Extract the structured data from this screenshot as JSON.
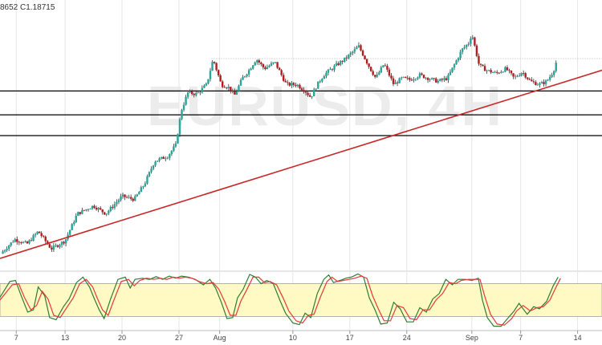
{
  "header": {
    "text": "8652  C1.18715"
  },
  "watermark": {
    "symbol": "EURUSD, 4H",
    "subtitle": ""
  },
  "colors": {
    "up": "#26a69a",
    "down": "#b71c1c",
    "trendline": "#c62828",
    "support": "#000000",
    "stoch_k": "#2e7d32",
    "stoch_d": "#e53935",
    "stoch_band": "#fff9c4",
    "grid": "#e6e6e6"
  },
  "chart_data": [
    {
      "type": "candlestick",
      "x_ticks": [
        {
          "label": "7",
          "day": 7
        },
        {
          "label": "13",
          "day": 13
        },
        {
          "label": "20",
          "day": 20
        },
        {
          "label": "27",
          "day": 27
        },
        {
          "label": "Aug",
          "day": 32
        },
        {
          "label": "10",
          "day": 41
        },
        {
          "label": "17",
          "day": 48
        },
        {
          "label": "24",
          "day": 55
        },
        {
          "label": "Sep",
          "day": 63
        },
        {
          "label": "7",
          "day": 69
        },
        {
          "label": "14",
          "day": 76
        }
      ],
      "xlim": [
        5,
        79
      ],
      "ylim": [
        1.1225,
        1.2035
      ],
      "last_close": 1.18715,
      "price_path": [
        [
          5.1,
          1.126
        ],
        [
          6.8,
          1.1305
        ],
        [
          8.3,
          1.129
        ],
        [
          9.7,
          1.133
        ],
        [
          11.3,
          1.1275
        ],
        [
          13.0,
          1.13
        ],
        [
          14.5,
          1.1385
        ],
        [
          16.5,
          1.141
        ],
        [
          18.0,
          1.1385
        ],
        [
          20.0,
          1.144
        ],
        [
          21.5,
          1.143
        ],
        [
          22.8,
          1.148
        ],
        [
          24.0,
          1.155
        ],
        [
          25.6,
          1.1565
        ],
        [
          26.6,
          1.16
        ],
        [
          27.3,
          1.171
        ],
        [
          28.1,
          1.1765
        ],
        [
          29.2,
          1.176
        ],
        [
          30.4,
          1.179
        ],
        [
          31.2,
          1.187
        ],
        [
          32.2,
          1.179
        ],
        [
          33.2,
          1.178
        ],
        [
          33.8,
          1.1755
        ],
        [
          34.8,
          1.181
        ],
        [
          35.6,
          1.1835
        ],
        [
          36.5,
          1.187
        ],
        [
          37.5,
          1.184
        ],
        [
          38.8,
          1.186
        ],
        [
          40.2,
          1.179
        ],
        [
          41.5,
          1.179
        ],
        [
          42.5,
          1.177
        ],
        [
          43.2,
          1.175
        ],
        [
          44.0,
          1.179
        ],
        [
          44.8,
          1.182
        ],
        [
          46.3,
          1.185
        ],
        [
          47.4,
          1.187
        ],
        [
          49.1,
          1.191
        ],
        [
          50.5,
          1.184
        ],
        [
          51.2,
          1.181
        ],
        [
          52.2,
          1.1855
        ],
        [
          53.4,
          1.179
        ],
        [
          54.4,
          1.181
        ],
        [
          55.4,
          1.1805
        ],
        [
          56.6,
          1.182
        ],
        [
          57.6,
          1.181
        ],
        [
          58.8,
          1.18
        ],
        [
          60.0,
          1.181
        ],
        [
          61.0,
          1.186
        ],
        [
          61.8,
          1.19
        ],
        [
          62.6,
          1.192
        ],
        [
          63.0,
          1.195
        ],
        [
          63.9,
          1.185
        ],
        [
          64.8,
          1.1835
        ],
        [
          66.0,
          1.1825
        ],
        [
          67.2,
          1.184
        ],
        [
          68.2,
          1.181
        ],
        [
          69.2,
          1.183
        ],
        [
          70.2,
          1.18
        ],
        [
          71.3,
          1.179
        ],
        [
          72.2,
          1.18
        ],
        [
          73.0,
          1.183
        ],
        [
          73.5,
          1.1871
        ]
      ],
      "support_levels": [
        1.177,
        1.1695,
        1.163
      ],
      "trendline": {
        "from": [
          5.0,
          1.1245
        ],
        "to": [
          79.0,
          1.1835
        ]
      },
      "last_price_line": 1.18715,
      "grid": true
    },
    {
      "type": "line",
      "name": "Stochastic",
      "ylim": [
        0,
        100
      ],
      "band": [
        20,
        80
      ],
      "series": [
        {
          "id": "k",
          "points": [
            [
              5.0,
              55
            ],
            [
              6.2,
              84
            ],
            [
              6.9,
              86
            ],
            [
              7.6,
              58
            ],
            [
              8.4,
              28
            ],
            [
              9.1,
              32
            ],
            [
              9.7,
              74
            ],
            [
              10.5,
              58
            ],
            [
              11.1,
              18
            ],
            [
              11.9,
              14
            ],
            [
              12.8,
              38
            ],
            [
              13.5,
              52
            ],
            [
              14.4,
              82
            ],
            [
              15.2,
              92
            ],
            [
              16.0,
              74
            ],
            [
              16.6,
              52
            ],
            [
              17.2,
              32
            ],
            [
              17.8,
              16
            ],
            [
              18.6,
              52
            ],
            [
              19.5,
              88
            ],
            [
              20.4,
              92
            ],
            [
              21.0,
              72
            ],
            [
              21.6,
              88
            ],
            [
              22.5,
              90
            ],
            [
              23.4,
              88
            ],
            [
              24.2,
              93
            ],
            [
              25.0,
              88
            ],
            [
              25.8,
              94
            ],
            [
              26.6,
              90
            ],
            [
              27.3,
              94
            ],
            [
              28.2,
              92
            ],
            [
              29.0,
              88
            ],
            [
              30.0,
              78
            ],
            [
              30.8,
              88
            ],
            [
              31.5,
              72
            ],
            [
              32.2,
              46
            ],
            [
              32.9,
              16
            ],
            [
              33.6,
              18
            ],
            [
              34.2,
              54
            ],
            [
              34.9,
              70
            ],
            [
              35.7,
              97
            ],
            [
              36.4,
              92
            ],
            [
              37.1,
              80
            ],
            [
              37.8,
              86
            ],
            [
              38.6,
              80
            ],
            [
              39.4,
              50
            ],
            [
              40.1,
              26
            ],
            [
              41.0,
              8
            ],
            [
              41.8,
              5
            ],
            [
              42.5,
              26
            ],
            [
              43.2,
              18
            ],
            [
              44.0,
              62
            ],
            [
              44.8,
              88
            ],
            [
              45.4,
              96
            ],
            [
              46.0,
              82
            ],
            [
              46.8,
              86
            ],
            [
              47.5,
              90
            ],
            [
              48.2,
              92
            ],
            [
              49.0,
              98
            ],
            [
              49.7,
              92
            ],
            [
              50.4,
              54
            ],
            [
              51.1,
              32
            ],
            [
              51.8,
              6
            ],
            [
              52.6,
              8
            ],
            [
              53.4,
              46
            ],
            [
              54.2,
              34
            ],
            [
              55.0,
              10
            ],
            [
              55.8,
              10
            ],
            [
              56.6,
              36
            ],
            [
              57.4,
              28
            ],
            [
              58.2,
              52
            ],
            [
              59.0,
              62
            ],
            [
              59.8,
              88
            ],
            [
              60.6,
              78
            ],
            [
              61.3,
              88
            ],
            [
              62.2,
              88
            ],
            [
              63.0,
              86
            ],
            [
              63.8,
              90
            ],
            [
              64.3,
              50
            ],
            [
              64.9,
              18
            ],
            [
              65.7,
              2
            ],
            [
              66.6,
              2
            ],
            [
              67.5,
              18
            ],
            [
              68.2,
              30
            ],
            [
              68.8,
              44
            ],
            [
              69.8,
              24
            ],
            [
              70.6,
              38
            ],
            [
              71.3,
              34
            ],
            [
              72.2,
              48
            ],
            [
              73.0,
              76
            ],
            [
              73.6,
              92
            ]
          ]
        },
        {
          "id": "d",
          "points": [
            [
              5.0,
              50
            ],
            [
              6.5,
              78
            ],
            [
              7.3,
              80
            ],
            [
              8.0,
              55
            ],
            [
              8.8,
              32
            ],
            [
              9.5,
              40
            ],
            [
              10.2,
              66
            ],
            [
              10.9,
              52
            ],
            [
              11.6,
              22
            ],
            [
              12.4,
              18
            ],
            [
              13.2,
              36
            ],
            [
              14.0,
              54
            ],
            [
              14.8,
              80
            ],
            [
              15.6,
              88
            ],
            [
              16.4,
              74
            ],
            [
              17.0,
              52
            ],
            [
              17.6,
              32
            ],
            [
              18.3,
              22
            ],
            [
              19.0,
              50
            ],
            [
              19.9,
              84
            ],
            [
              20.8,
              88
            ],
            [
              21.5,
              76
            ],
            [
              22.2,
              86
            ],
            [
              23.0,
              90
            ],
            [
              23.9,
              88
            ],
            [
              24.7,
              90
            ],
            [
              25.5,
              88
            ],
            [
              26.3,
              92
            ],
            [
              27.0,
              90
            ],
            [
              27.8,
              92
            ],
            [
              28.6,
              90
            ],
            [
              29.5,
              84
            ],
            [
              30.4,
              80
            ],
            [
              31.2,
              82
            ],
            [
              31.9,
              70
            ],
            [
              32.6,
              48
            ],
            [
              33.3,
              22
            ],
            [
              34.0,
              22
            ],
            [
              34.6,
              48
            ],
            [
              35.3,
              68
            ],
            [
              36.1,
              92
            ],
            [
              36.8,
              92
            ],
            [
              37.5,
              82
            ],
            [
              38.2,
              84
            ],
            [
              39.0,
              78
            ],
            [
              39.8,
              54
            ],
            [
              40.5,
              30
            ],
            [
              41.4,
              12
            ],
            [
              42.2,
              8
            ],
            [
              42.9,
              22
            ],
            [
              43.6,
              24
            ],
            [
              44.4,
              56
            ],
            [
              45.2,
              84
            ],
            [
              45.8,
              92
            ],
            [
              46.5,
              84
            ],
            [
              47.2,
              86
            ],
            [
              47.9,
              88
            ],
            [
              48.6,
              90
            ],
            [
              49.4,
              94
            ],
            [
              50.1,
              90
            ],
            [
              50.8,
              58
            ],
            [
              51.5,
              34
            ],
            [
              52.2,
              12
            ],
            [
              53.0,
              12
            ],
            [
              53.8,
              40
            ],
            [
              54.6,
              36
            ],
            [
              55.4,
              16
            ],
            [
              56.2,
              14
            ],
            [
              57.0,
              32
            ],
            [
              57.8,
              32
            ],
            [
              58.6,
              50
            ],
            [
              59.4,
              62
            ],
            [
              60.2,
              82
            ],
            [
              61.0,
              80
            ],
            [
              61.7,
              86
            ],
            [
              62.6,
              88
            ],
            [
              63.4,
              88
            ],
            [
              64.0,
              88
            ],
            [
              64.6,
              56
            ],
            [
              65.3,
              24
            ],
            [
              66.1,
              6
            ],
            [
              67.0,
              4
            ],
            [
              67.9,
              16
            ],
            [
              68.5,
              30
            ],
            [
              69.3,
              40
            ],
            [
              70.2,
              30
            ],
            [
              71.0,
              36
            ],
            [
              71.8,
              38
            ],
            [
              72.6,
              50
            ],
            [
              73.3,
              72
            ],
            [
              73.9,
              90
            ]
          ]
        }
      ]
    }
  ]
}
